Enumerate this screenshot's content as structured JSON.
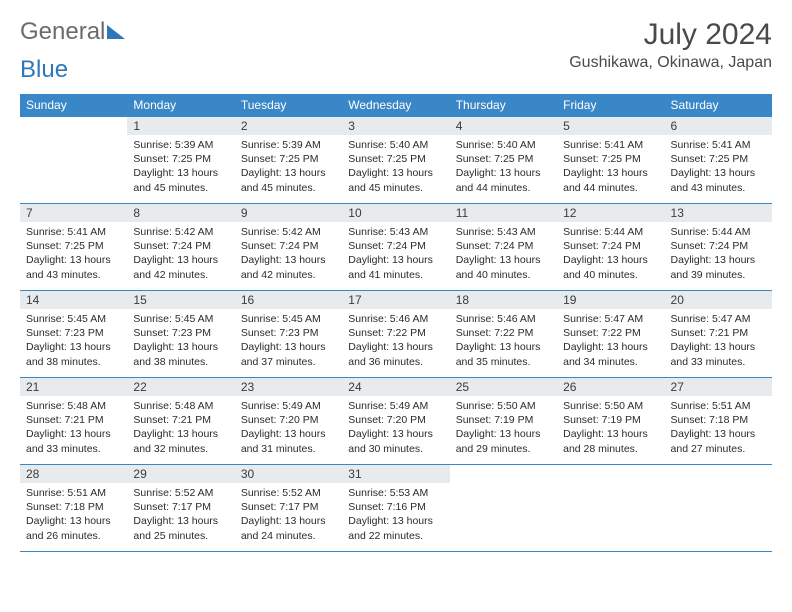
{
  "brand": {
    "first": "General",
    "second": "Blue"
  },
  "title": "July 2024",
  "location": "Gushikawa, Okinawa, Japan",
  "colors": {
    "header_bg": "#3a87c8",
    "header_text": "#ffffff",
    "daynum_bg": "#e8ebee",
    "border": "#3a87c8",
    "title_color": "#4a4a4a",
    "body_text": "#2b2b2b",
    "logo_gray": "#6b6b6b",
    "logo_blue": "#2f77b6"
  },
  "fonts": {
    "title_pt": 30,
    "location_pt": 16,
    "th_pt": 12,
    "daynum_pt": 12,
    "body_pt": 10.5
  },
  "weekdays": [
    "Sunday",
    "Monday",
    "Tuesday",
    "Wednesday",
    "Thursday",
    "Friday",
    "Saturday"
  ],
  "weeks": [
    [
      {
        "num": "",
        "lines": []
      },
      {
        "num": "1",
        "lines": [
          "Sunrise: 5:39 AM",
          "Sunset: 7:25 PM",
          "Daylight: 13 hours and 45 minutes."
        ]
      },
      {
        "num": "2",
        "lines": [
          "Sunrise: 5:39 AM",
          "Sunset: 7:25 PM",
          "Daylight: 13 hours and 45 minutes."
        ]
      },
      {
        "num": "3",
        "lines": [
          "Sunrise: 5:40 AM",
          "Sunset: 7:25 PM",
          "Daylight: 13 hours and 45 minutes."
        ]
      },
      {
        "num": "4",
        "lines": [
          "Sunrise: 5:40 AM",
          "Sunset: 7:25 PM",
          "Daylight: 13 hours and 44 minutes."
        ]
      },
      {
        "num": "5",
        "lines": [
          "Sunrise: 5:41 AM",
          "Sunset: 7:25 PM",
          "Daylight: 13 hours and 44 minutes."
        ]
      },
      {
        "num": "6",
        "lines": [
          "Sunrise: 5:41 AM",
          "Sunset: 7:25 PM",
          "Daylight: 13 hours and 43 minutes."
        ]
      }
    ],
    [
      {
        "num": "7",
        "lines": [
          "Sunrise: 5:41 AM",
          "Sunset: 7:25 PM",
          "Daylight: 13 hours and 43 minutes."
        ]
      },
      {
        "num": "8",
        "lines": [
          "Sunrise: 5:42 AM",
          "Sunset: 7:24 PM",
          "Daylight: 13 hours and 42 minutes."
        ]
      },
      {
        "num": "9",
        "lines": [
          "Sunrise: 5:42 AM",
          "Sunset: 7:24 PM",
          "Daylight: 13 hours and 42 minutes."
        ]
      },
      {
        "num": "10",
        "lines": [
          "Sunrise: 5:43 AM",
          "Sunset: 7:24 PM",
          "Daylight: 13 hours and 41 minutes."
        ]
      },
      {
        "num": "11",
        "lines": [
          "Sunrise: 5:43 AM",
          "Sunset: 7:24 PM",
          "Daylight: 13 hours and 40 minutes."
        ]
      },
      {
        "num": "12",
        "lines": [
          "Sunrise: 5:44 AM",
          "Sunset: 7:24 PM",
          "Daylight: 13 hours and 40 minutes."
        ]
      },
      {
        "num": "13",
        "lines": [
          "Sunrise: 5:44 AM",
          "Sunset: 7:24 PM",
          "Daylight: 13 hours and 39 minutes."
        ]
      }
    ],
    [
      {
        "num": "14",
        "lines": [
          "Sunrise: 5:45 AM",
          "Sunset: 7:23 PM",
          "Daylight: 13 hours and 38 minutes."
        ]
      },
      {
        "num": "15",
        "lines": [
          "Sunrise: 5:45 AM",
          "Sunset: 7:23 PM",
          "Daylight: 13 hours and 38 minutes."
        ]
      },
      {
        "num": "16",
        "lines": [
          "Sunrise: 5:45 AM",
          "Sunset: 7:23 PM",
          "Daylight: 13 hours and 37 minutes."
        ]
      },
      {
        "num": "17",
        "lines": [
          "Sunrise: 5:46 AM",
          "Sunset: 7:22 PM",
          "Daylight: 13 hours and 36 minutes."
        ]
      },
      {
        "num": "18",
        "lines": [
          "Sunrise: 5:46 AM",
          "Sunset: 7:22 PM",
          "Daylight: 13 hours and 35 minutes."
        ]
      },
      {
        "num": "19",
        "lines": [
          "Sunrise: 5:47 AM",
          "Sunset: 7:22 PM",
          "Daylight: 13 hours and 34 minutes."
        ]
      },
      {
        "num": "20",
        "lines": [
          "Sunrise: 5:47 AM",
          "Sunset: 7:21 PM",
          "Daylight: 13 hours and 33 minutes."
        ]
      }
    ],
    [
      {
        "num": "21",
        "lines": [
          "Sunrise: 5:48 AM",
          "Sunset: 7:21 PM",
          "Daylight: 13 hours and 33 minutes."
        ]
      },
      {
        "num": "22",
        "lines": [
          "Sunrise: 5:48 AM",
          "Sunset: 7:21 PM",
          "Daylight: 13 hours and 32 minutes."
        ]
      },
      {
        "num": "23",
        "lines": [
          "Sunrise: 5:49 AM",
          "Sunset: 7:20 PM",
          "Daylight: 13 hours and 31 minutes."
        ]
      },
      {
        "num": "24",
        "lines": [
          "Sunrise: 5:49 AM",
          "Sunset: 7:20 PM",
          "Daylight: 13 hours and 30 minutes."
        ]
      },
      {
        "num": "25",
        "lines": [
          "Sunrise: 5:50 AM",
          "Sunset: 7:19 PM",
          "Daylight: 13 hours and 29 minutes."
        ]
      },
      {
        "num": "26",
        "lines": [
          "Sunrise: 5:50 AM",
          "Sunset: 7:19 PM",
          "Daylight: 13 hours and 28 minutes."
        ]
      },
      {
        "num": "27",
        "lines": [
          "Sunrise: 5:51 AM",
          "Sunset: 7:18 PM",
          "Daylight: 13 hours and 27 minutes."
        ]
      }
    ],
    [
      {
        "num": "28",
        "lines": [
          "Sunrise: 5:51 AM",
          "Sunset: 7:18 PM",
          "Daylight: 13 hours and 26 minutes."
        ]
      },
      {
        "num": "29",
        "lines": [
          "Sunrise: 5:52 AM",
          "Sunset: 7:17 PM",
          "Daylight: 13 hours and 25 minutes."
        ]
      },
      {
        "num": "30",
        "lines": [
          "Sunrise: 5:52 AM",
          "Sunset: 7:17 PM",
          "Daylight: 13 hours and 24 minutes."
        ]
      },
      {
        "num": "31",
        "lines": [
          "Sunrise: 5:53 AM",
          "Sunset: 7:16 PM",
          "Daylight: 13 hours and 22 minutes."
        ]
      },
      {
        "num": "",
        "lines": []
      },
      {
        "num": "",
        "lines": []
      },
      {
        "num": "",
        "lines": []
      }
    ]
  ]
}
